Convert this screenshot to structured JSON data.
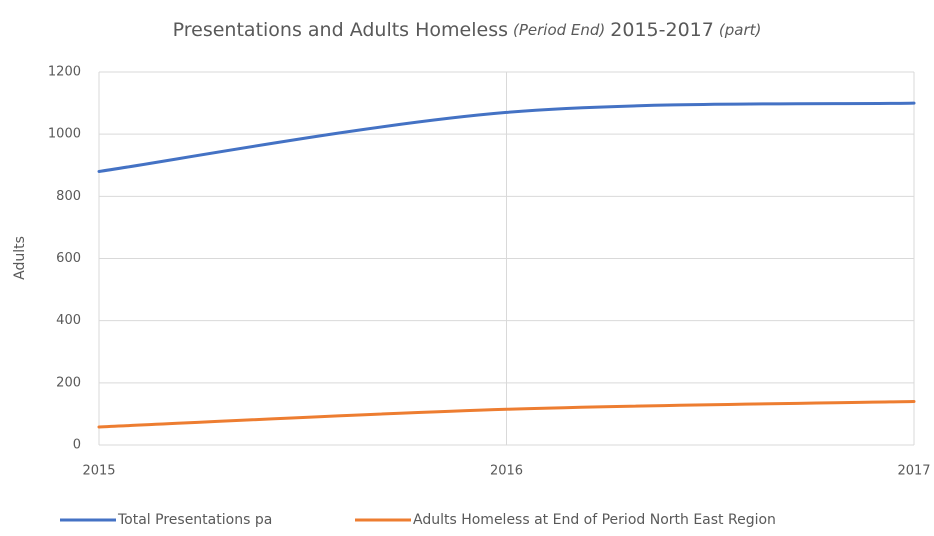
{
  "chart_data": {
    "type": "line",
    "title": [
      {
        "text": "Presentations and Adults Homeless",
        "italic": false
      },
      {
        "text": "(Period End)",
        "italic": true
      },
      {
        "text": "2015-2017",
        "italic": false
      },
      {
        "text": "(part)",
        "italic": true
      }
    ],
    "y_label": "Adults",
    "x": [
      2015,
      2016,
      2017
    ],
    "series": [
      {
        "name": "Total Presentations pa",
        "color": "#4472c4",
        "values": [
          880,
          1070,
          1100
        ]
      },
      {
        "name": "Adults Homeless at End of Period North East Region",
        "color": "#ed7d31",
        "values": [
          58,
          115,
          140
        ]
      }
    ],
    "xlim": [
      2015,
      2017
    ],
    "xticks": [
      2015,
      2016,
      2017
    ],
    "ylim": [
      0,
      1200
    ],
    "yticks": [
      0,
      200,
      400,
      600,
      800,
      1000,
      1200
    ],
    "grid": true,
    "smooth": true,
    "legend": "bottom"
  }
}
